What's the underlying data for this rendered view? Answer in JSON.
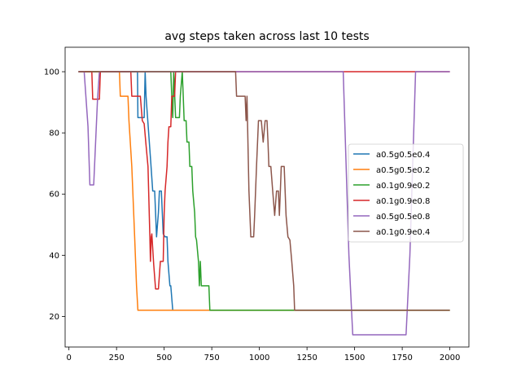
{
  "chart_data": {
    "type": "line",
    "title": "avg steps taken across last 10 tests",
    "xlabel": "",
    "ylabel": "",
    "xlim": [
      -20,
      2100
    ],
    "ylim": [
      10,
      108
    ],
    "xticks": [
      0,
      250,
      500,
      750,
      1000,
      1250,
      1500,
      1750,
      2000
    ],
    "yticks": [
      20,
      40,
      60,
      80,
      100
    ],
    "grid": false,
    "legend_position": "center-right",
    "series": [
      {
        "name": "a0.5g0.5e0.4",
        "color": "#1f77b4",
        "points": [
          [
            50,
            100
          ],
          [
            360,
            100
          ],
          [
            362,
            85
          ],
          [
            395,
            85
          ],
          [
            400,
            100
          ],
          [
            405,
            92
          ],
          [
            430,
            70
          ],
          [
            440,
            61
          ],
          [
            450,
            61
          ],
          [
            460,
            46
          ],
          [
            470,
            54
          ],
          [
            475,
            61
          ],
          [
            485,
            61
          ],
          [
            495,
            47
          ],
          [
            505,
            46
          ],
          [
            515,
            46
          ],
          [
            520,
            38
          ],
          [
            530,
            30
          ],
          [
            535,
            30
          ],
          [
            545,
            22
          ]
        ]
      },
      {
        "name": "a0.5g0.5e0.2",
        "color": "#ff7f0e",
        "points": [
          [
            50,
            100
          ],
          [
            265,
            100
          ],
          [
            270,
            92
          ],
          [
            310,
            92
          ],
          [
            315,
            84
          ],
          [
            330,
            69
          ],
          [
            345,
            46
          ],
          [
            355,
            30
          ],
          [
            362,
            22
          ],
          [
            2000,
            22
          ]
        ]
      },
      {
        "name": "a0.1g0.9e0.2",
        "color": "#2ca02c",
        "points": [
          [
            50,
            100
          ],
          [
            535,
            100
          ],
          [
            540,
            92
          ],
          [
            545,
            85
          ],
          [
            550,
            100
          ],
          [
            560,
            85
          ],
          [
            580,
            85
          ],
          [
            585,
            92
          ],
          [
            595,
            100
          ],
          [
            600,
            92
          ],
          [
            605,
            84
          ],
          [
            615,
            84
          ],
          [
            620,
            77
          ],
          [
            630,
            77
          ],
          [
            635,
            69
          ],
          [
            645,
            69
          ],
          [
            650,
            61
          ],
          [
            660,
            54
          ],
          [
            665,
            46
          ],
          [
            670,
            45
          ],
          [
            680,
            38
          ],
          [
            685,
            30
          ],
          [
            690,
            38
          ],
          [
            695,
            30
          ],
          [
            735,
            30
          ],
          [
            740,
            22
          ],
          [
            2000,
            22
          ]
        ]
      },
      {
        "name": "a0.1g0.9e0.8",
        "color": "#d62728",
        "points": [
          [
            50,
            100
          ],
          [
            120,
            100
          ],
          [
            125,
            91
          ],
          [
            135,
            91
          ],
          [
            150,
            91
          ],
          [
            160,
            91
          ],
          [
            165,
            100
          ],
          [
            325,
            100
          ],
          [
            330,
            92
          ],
          [
            365,
            92
          ],
          [
            375,
            92
          ],
          [
            385,
            84
          ],
          [
            395,
            83
          ],
          [
            405,
            76
          ],
          [
            415,
            69
          ],
          [
            425,
            46
          ],
          [
            428,
            38
          ],
          [
            432,
            46
          ],
          [
            435,
            47
          ],
          [
            445,
            37
          ],
          [
            455,
            29
          ],
          [
            470,
            29
          ],
          [
            480,
            38
          ],
          [
            490,
            38
          ],
          [
            495,
            38
          ],
          [
            500,
            54
          ],
          [
            505,
            61
          ],
          [
            515,
            69
          ],
          [
            520,
            77
          ],
          [
            525,
            82
          ],
          [
            535,
            82
          ],
          [
            540,
            92
          ],
          [
            555,
            92
          ],
          [
            560,
            100
          ],
          [
            2000,
            100
          ]
        ]
      },
      {
        "name": "a0.5g0.5e0.8",
        "color": "#9467bd",
        "points": [
          [
            50,
            100
          ],
          [
            80,
            100
          ],
          [
            100,
            82
          ],
          [
            110,
            63
          ],
          [
            130,
            63
          ],
          [
            150,
            91
          ],
          [
            160,
            100
          ],
          [
            1440,
            100
          ],
          [
            1470,
            40
          ],
          [
            1490,
            14
          ],
          [
            1770,
            14
          ],
          [
            1790,
            40
          ],
          [
            1820,
            100
          ],
          [
            2000,
            100
          ]
        ]
      },
      {
        "name": "a0.1g0.9e0.4",
        "color": "#8c564b",
        "points": [
          [
            50,
            100
          ],
          [
            875,
            100
          ],
          [
            880,
            92
          ],
          [
            925,
            92
          ],
          [
            930,
            84
          ],
          [
            935,
            92
          ],
          [
            945,
            61
          ],
          [
            955,
            46
          ],
          [
            970,
            46
          ],
          [
            975,
            53
          ],
          [
            985,
            69
          ],
          [
            995,
            84
          ],
          [
            1010,
            84
          ],
          [
            1020,
            77
          ],
          [
            1030,
            84
          ],
          [
            1040,
            84
          ],
          [
            1045,
            77
          ],
          [
            1050,
            69
          ],
          [
            1060,
            69
          ],
          [
            1070,
            61
          ],
          [
            1080,
            53
          ],
          [
            1090,
            61
          ],
          [
            1100,
            61
          ],
          [
            1105,
            53
          ],
          [
            1110,
            61
          ],
          [
            1115,
            69
          ],
          [
            1130,
            69
          ],
          [
            1140,
            53
          ],
          [
            1150,
            46
          ],
          [
            1160,
            45
          ],
          [
            1170,
            38
          ],
          [
            1180,
            30
          ],
          [
            1185,
            22
          ],
          [
            2000,
            22
          ]
        ]
      }
    ]
  }
}
